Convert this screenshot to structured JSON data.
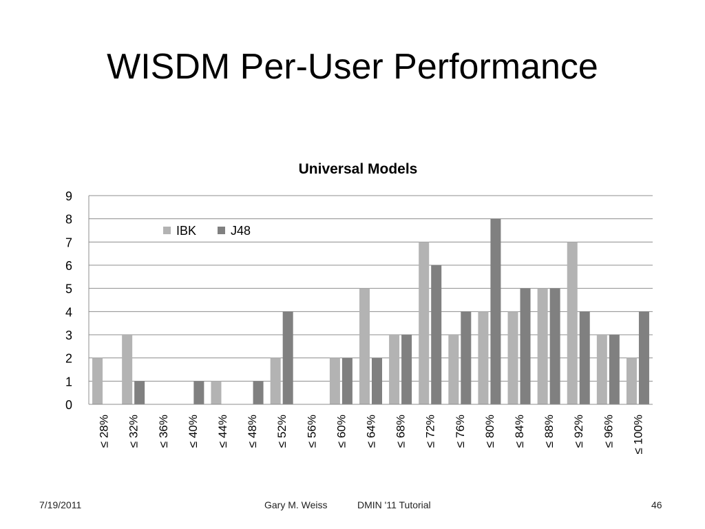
{
  "slide": {
    "title": "WISDM Per-User Performance",
    "footer": {
      "date": "7/19/2011",
      "author": "Gary M. Weiss",
      "event": "DMIN '11 Tutorial",
      "page": "46"
    }
  },
  "chart_data": {
    "type": "bar",
    "title": "Universal Models",
    "xlabel": "",
    "ylabel": "",
    "ylim": [
      0,
      9
    ],
    "yticks": [
      "0",
      "1",
      "2",
      "3",
      "4",
      "5",
      "6",
      "7",
      "8",
      "9"
    ],
    "grid": true,
    "legend_position": "top-left",
    "categories": [
      "≤ 28%",
      "≤ 32%",
      "≤ 36%",
      "≤ 40%",
      "≤ 44%",
      "≤ 48%",
      "≤ 52%",
      "≤ 56%",
      "≤ 60%",
      "≤ 64%",
      "≤ 68%",
      "≤ 72%",
      "≤ 76%",
      "≤ 80%",
      "≤ 84%",
      "≤ 88%",
      "≤ 92%",
      "≤ 96%",
      "≤ 100%"
    ],
    "series": [
      {
        "name": "IBK",
        "color": "#b3b3b3",
        "values": [
          2,
          3,
          0,
          0,
          1,
          0,
          2,
          0,
          2,
          5,
          3,
          7,
          3,
          4,
          4,
          5,
          7,
          3,
          2
        ]
      },
      {
        "name": "J48",
        "color": "#808080",
        "values": [
          0,
          1,
          0,
          1,
          0,
          1,
          4,
          0,
          2,
          2,
          3,
          6,
          4,
          8,
          5,
          5,
          4,
          3,
          4
        ]
      }
    ]
  }
}
